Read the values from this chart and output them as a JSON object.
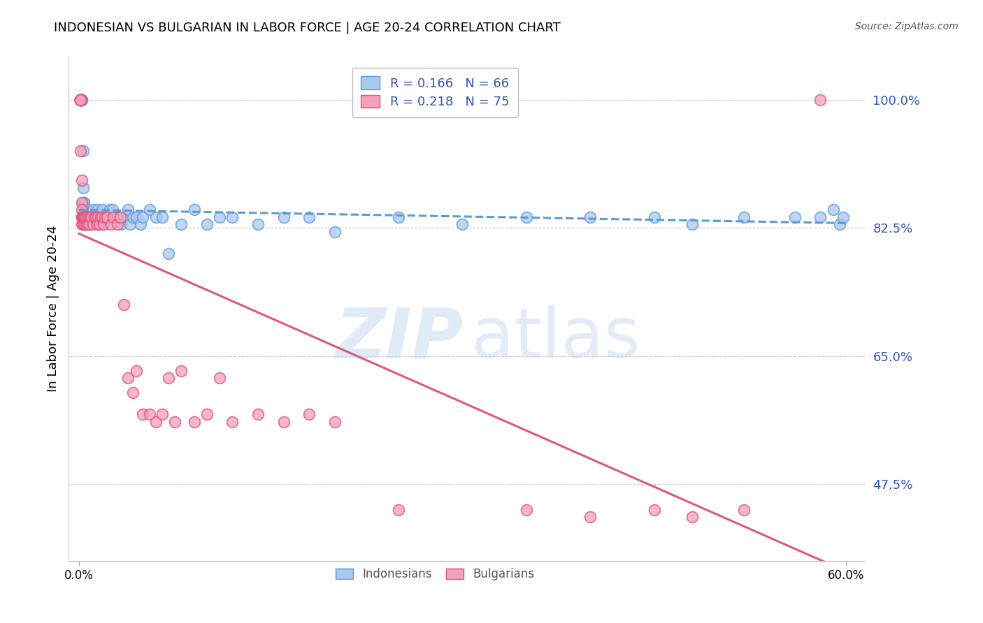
{
  "title": "INDONESIAN VS BULGARIAN IN LABOR FORCE | AGE 20-24 CORRELATION CHART",
  "source": "Source: ZipAtlas.com",
  "ylabel": "In Labor Force | Age 20-24",
  "yticks": [
    0.475,
    0.65,
    0.825,
    1.0
  ],
  "ytick_labels": [
    "47.5%",
    "65.0%",
    "82.5%",
    "100.0%"
  ],
  "indonesian_color": "#A8C8F0",
  "indonesian_edge": "#5B9BD5",
  "bulgarian_color": "#F4A0B8",
  "bulgarian_edge": "#E05080",
  "trend_indonesian_color": "#5B9BD5",
  "trend_bulgarian_color": "#E05878",
  "watermark_zip": "ZIP",
  "watermark_atlas": "atlas",
  "indonesian_scatter_x": [
    0.002,
    0.002,
    0.003,
    0.003,
    0.003,
    0.004,
    0.004,
    0.004,
    0.005,
    0.005,
    0.005,
    0.006,
    0.006,
    0.007,
    0.007,
    0.008,
    0.009,
    0.01,
    0.011,
    0.012,
    0.013,
    0.014,
    0.015,
    0.015,
    0.016,
    0.018,
    0.019,
    0.02,
    0.022,
    0.024,
    0.026,
    0.028,
    0.03,
    0.033,
    0.035,
    0.038,
    0.04,
    0.042,
    0.045,
    0.048,
    0.05,
    0.055,
    0.06,
    0.065,
    0.07,
    0.08,
    0.09,
    0.1,
    0.11,
    0.12,
    0.14,
    0.16,
    0.18,
    0.2,
    0.25,
    0.3,
    0.35,
    0.4,
    0.45,
    0.48,
    0.52,
    0.56,
    0.58,
    0.59,
    0.595,
    0.598
  ],
  "indonesian_scatter_y": [
    1.0,
    1.0,
    0.93,
    0.88,
    0.86,
    0.86,
    0.85,
    0.84,
    0.85,
    0.84,
    0.83,
    0.85,
    0.84,
    0.84,
    0.83,
    0.84,
    0.84,
    0.84,
    0.85,
    0.84,
    0.84,
    0.85,
    0.83,
    0.84,
    0.84,
    0.85,
    0.83,
    0.84,
    0.84,
    0.85,
    0.85,
    0.84,
    0.84,
    0.83,
    0.84,
    0.85,
    0.83,
    0.84,
    0.84,
    0.83,
    0.84,
    0.85,
    0.84,
    0.84,
    0.79,
    0.83,
    0.85,
    0.83,
    0.84,
    0.84,
    0.83,
    0.84,
    0.84,
    0.82,
    0.84,
    0.83,
    0.84,
    0.84,
    0.84,
    0.83,
    0.84,
    0.84,
    0.84,
    0.85,
    0.83,
    0.84
  ],
  "bulgarian_scatter_x": [
    0.001,
    0.001,
    0.001,
    0.001,
    0.001,
    0.001,
    0.001,
    0.001,
    0.001,
    0.002,
    0.002,
    0.002,
    0.002,
    0.002,
    0.002,
    0.003,
    0.003,
    0.003,
    0.003,
    0.004,
    0.004,
    0.004,
    0.004,
    0.005,
    0.005,
    0.005,
    0.006,
    0.006,
    0.007,
    0.007,
    0.008,
    0.008,
    0.009,
    0.01,
    0.011,
    0.012,
    0.013,
    0.014,
    0.015,
    0.016,
    0.017,
    0.018,
    0.019,
    0.02,
    0.022,
    0.025,
    0.027,
    0.03,
    0.032,
    0.035,
    0.038,
    0.042,
    0.045,
    0.05,
    0.055,
    0.06,
    0.065,
    0.07,
    0.075,
    0.08,
    0.09,
    0.1,
    0.11,
    0.12,
    0.14,
    0.16,
    0.18,
    0.2,
    0.25,
    0.35,
    0.4,
    0.45,
    0.48,
    0.52,
    0.58
  ],
  "bulgarian_scatter_y": [
    1.0,
    1.0,
    1.0,
    1.0,
    1.0,
    1.0,
    1.0,
    1.0,
    0.93,
    0.89,
    0.86,
    0.85,
    0.84,
    0.83,
    0.84,
    0.84,
    0.84,
    0.83,
    0.84,
    0.84,
    0.83,
    0.84,
    0.84,
    0.84,
    0.83,
    0.84,
    0.84,
    0.83,
    0.84,
    0.83,
    0.84,
    0.83,
    0.84,
    0.84,
    0.83,
    0.84,
    0.84,
    0.83,
    0.84,
    0.83,
    0.84,
    0.84,
    0.83,
    0.84,
    0.84,
    0.83,
    0.84,
    0.83,
    0.84,
    0.72,
    0.62,
    0.6,
    0.63,
    0.57,
    0.57,
    0.56,
    0.57,
    0.62,
    0.56,
    0.63,
    0.56,
    0.57,
    0.62,
    0.56,
    0.57,
    0.56,
    0.57,
    0.56,
    0.44,
    0.44,
    0.43,
    0.44,
    0.43,
    0.44,
    1.0
  ]
}
